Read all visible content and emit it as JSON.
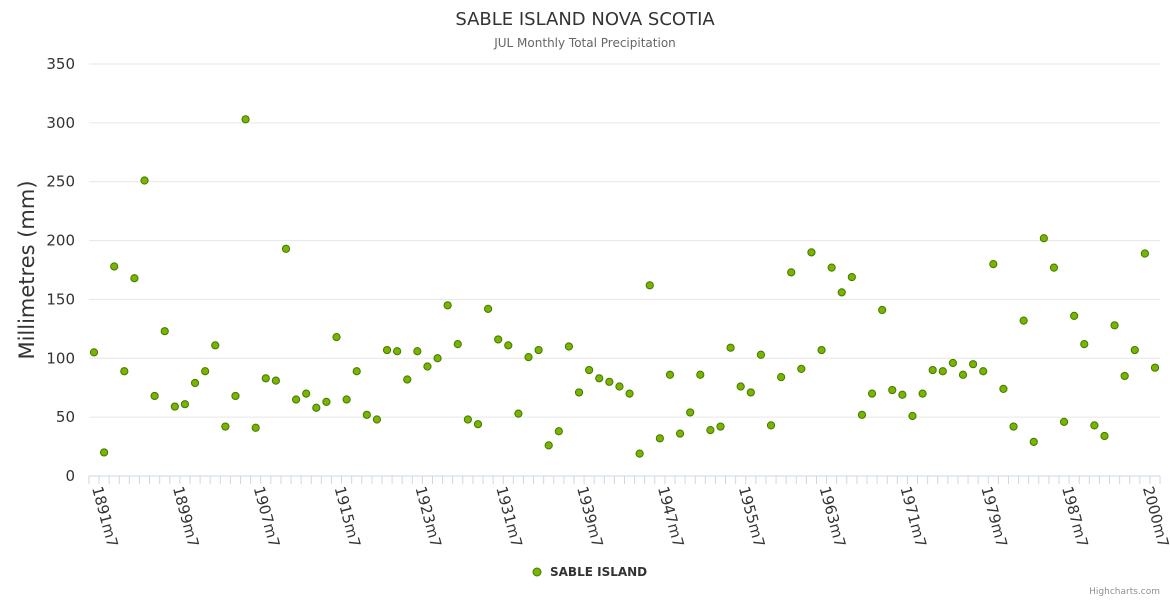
{
  "chart_data": {
    "type": "scatter",
    "title": "SABLE ISLAND NOVA SCOTIA",
    "subtitle": "JUL Monthly Total Precipitation",
    "xlabel": "",
    "ylabel": "Millimetres (mm)",
    "ylim": [
      0,
      350
    ],
    "yticks": [
      0,
      50,
      100,
      150,
      200,
      250,
      300,
      350
    ],
    "x_tick_labels": [
      "1891m7",
      "1899m7",
      "1907m7",
      "1915m7",
      "1923m7",
      "1931m7",
      "1939m7",
      "1947m7",
      "1955m7",
      "1963m7",
      "1971m7",
      "1979m7",
      "1987m7",
      "2000m7"
    ],
    "x_tick_indices": [
      0,
      8,
      16,
      24,
      32,
      40,
      48,
      56,
      64,
      72,
      80,
      88,
      96,
      104
    ],
    "grid": true,
    "legend_position": "bottom-center",
    "marker_color": "#7cb300",
    "marker_stroke": "#3f7a00",
    "series": [
      {
        "name": "SABLE ISLAND",
        "values": [
          105,
          20,
          178,
          89,
          168,
          251,
          68,
          123,
          59,
          61,
          79,
          89,
          111,
          42,
          68,
          303,
          41,
          83,
          81,
          193,
          65,
          70,
          58,
          63,
          118,
          65,
          89,
          52,
          48,
          107,
          106,
          82,
          106,
          93,
          100,
          145,
          112,
          48,
          44,
          142,
          116,
          111,
          53,
          101,
          107,
          26,
          38,
          110,
          71,
          90,
          83,
          80,
          76,
          70,
          19,
          162,
          32,
          86,
          36,
          54,
          86,
          39,
          42,
          109,
          76,
          71,
          103,
          43,
          84,
          173,
          91,
          190,
          107,
          177,
          156,
          169,
          52,
          70,
          141,
          73,
          69,
          51,
          70,
          90,
          89,
          96,
          86,
          95,
          89,
          180,
          74,
          42,
          132,
          29,
          202,
          177,
          46,
          136,
          112,
          43,
          34,
          128,
          85,
          107,
          189,
          92
        ]
      }
    ]
  },
  "legend": {
    "label": "SABLE ISLAND"
  },
  "credits": "Highcharts.com"
}
